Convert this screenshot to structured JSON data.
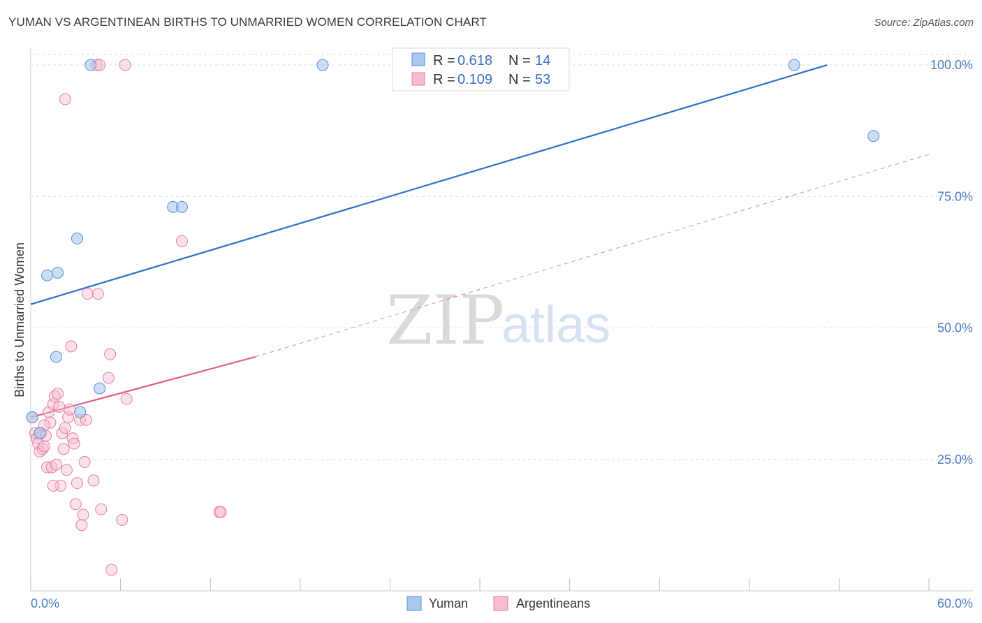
{
  "header": {
    "title": "YUMAN VS ARGENTINEAN BIRTHS TO UNMARRIED WOMEN CORRELATION CHART",
    "source": "Source: ZipAtlas.com"
  },
  "watermark": {
    "part1": "ZIP",
    "part2": "atlas"
  },
  "colors": {
    "yuman_fill": "#a9c8ef",
    "yuman_stroke": "#5b8fd4",
    "yuman_line": "#2f6fcb",
    "arg_fill": "#f7bcd0",
    "arg_stroke": "#e3819f",
    "arg_line": "#e0608a",
    "tick": "#4a7fc9",
    "grid": "#dddddd"
  },
  "legend": {
    "rows": [
      {
        "series": "Yuman",
        "r_label": "R =",
        "r_value": "0.618",
        "n_label": "N =",
        "n_value": "14"
      },
      {
        "series": "Argentineans",
        "r_label": "R =",
        "r_value": "0.109",
        "n_label": "N =",
        "n_value": "53"
      }
    ]
  },
  "chart_data": {
    "type": "scatter",
    "title": "YUMAN VS ARGENTINEAN BIRTHS TO UNMARRIED WOMEN CORRELATION CHART",
    "xlabel": "",
    "ylabel": "Births to Unmarried Women",
    "xlim": [
      0,
      60
    ],
    "ylim": [
      0,
      102
    ],
    "x_tick_labels": [
      "0.0%",
      "60.0%"
    ],
    "y_ticks": [
      25,
      50,
      75,
      100
    ],
    "y_tick_labels": [
      "25.0%",
      "50.0%",
      "75.0%",
      "100.0%"
    ],
    "grid": true,
    "legend_position": "top-center",
    "series": [
      {
        "name": "Yuman",
        "points": [
          [
            0.1,
            33.0
          ],
          [
            0.6,
            30.0
          ],
          [
            1.1,
            60.0
          ],
          [
            1.8,
            60.5
          ],
          [
            1.7,
            44.5
          ],
          [
            3.1,
            67.0
          ],
          [
            3.3,
            34.0
          ],
          [
            4.0,
            100.0
          ],
          [
            4.6,
            38.5
          ],
          [
            9.5,
            73.0
          ],
          [
            10.1,
            73.0
          ],
          [
            19.5,
            100.0
          ],
          [
            51.0,
            100.0
          ],
          [
            56.3,
            86.5
          ]
        ],
        "trend": {
          "x": [
            0,
            53.2
          ],
          "y": [
            54.5,
            100.0
          ]
        }
      },
      {
        "name": "Argentineans",
        "points": [
          [
            0.1,
            33.0
          ],
          [
            0.3,
            30.0
          ],
          [
            0.4,
            29.0
          ],
          [
            0.5,
            28.0
          ],
          [
            0.6,
            26.5
          ],
          [
            0.7,
            30.0
          ],
          [
            0.8,
            27.0
          ],
          [
            0.9,
            27.5
          ],
          [
            1.0,
            29.5
          ],
          [
            1.1,
            23.5
          ],
          [
            1.2,
            34.0
          ],
          [
            1.3,
            32.0
          ],
          [
            1.4,
            23.5
          ],
          [
            1.5,
            35.5
          ],
          [
            1.6,
            37.0
          ],
          [
            1.7,
            24.0
          ],
          [
            1.8,
            37.5
          ],
          [
            1.9,
            35.0
          ],
          [
            2.0,
            20.0
          ],
          [
            2.1,
            30.0
          ],
          [
            2.2,
            27.0
          ],
          [
            2.3,
            31.0
          ],
          [
            2.4,
            23.0
          ],
          [
            2.5,
            33.0
          ],
          [
            2.6,
            34.5
          ],
          [
            2.7,
            46.5
          ],
          [
            2.8,
            29.0
          ],
          [
            2.9,
            28.0
          ],
          [
            3.0,
            16.5
          ],
          [
            3.1,
            20.5
          ],
          [
            3.3,
            32.5
          ],
          [
            3.4,
            12.5
          ],
          [
            3.5,
            14.5
          ],
          [
            3.6,
            24.5
          ],
          [
            3.7,
            32.5
          ],
          [
            3.8,
            56.5
          ],
          [
            4.2,
            21.0
          ],
          [
            4.4,
            100.0
          ],
          [
            4.5,
            56.5
          ],
          [
            4.6,
            100.0
          ],
          [
            4.7,
            15.5
          ],
          [
            5.2,
            40.5
          ],
          [
            5.3,
            45.0
          ],
          [
            5.4,
            4.0
          ],
          [
            6.1,
            13.5
          ],
          [
            6.3,
            100.0
          ],
          [
            6.4,
            36.5
          ],
          [
            2.3,
            93.5
          ],
          [
            10.1,
            66.5
          ],
          [
            12.6,
            15.0
          ],
          [
            12.7,
            15.0
          ],
          [
            1.5,
            20.0
          ],
          [
            0.9,
            31.5
          ]
        ],
        "trend_solid": {
          "x": [
            0,
            15
          ],
          "y": [
            33.0,
            44.5
          ]
        },
        "trend_dashed": {
          "x": [
            15,
            60
          ],
          "y": [
            44.5,
            83.0
          ]
        }
      }
    ]
  }
}
